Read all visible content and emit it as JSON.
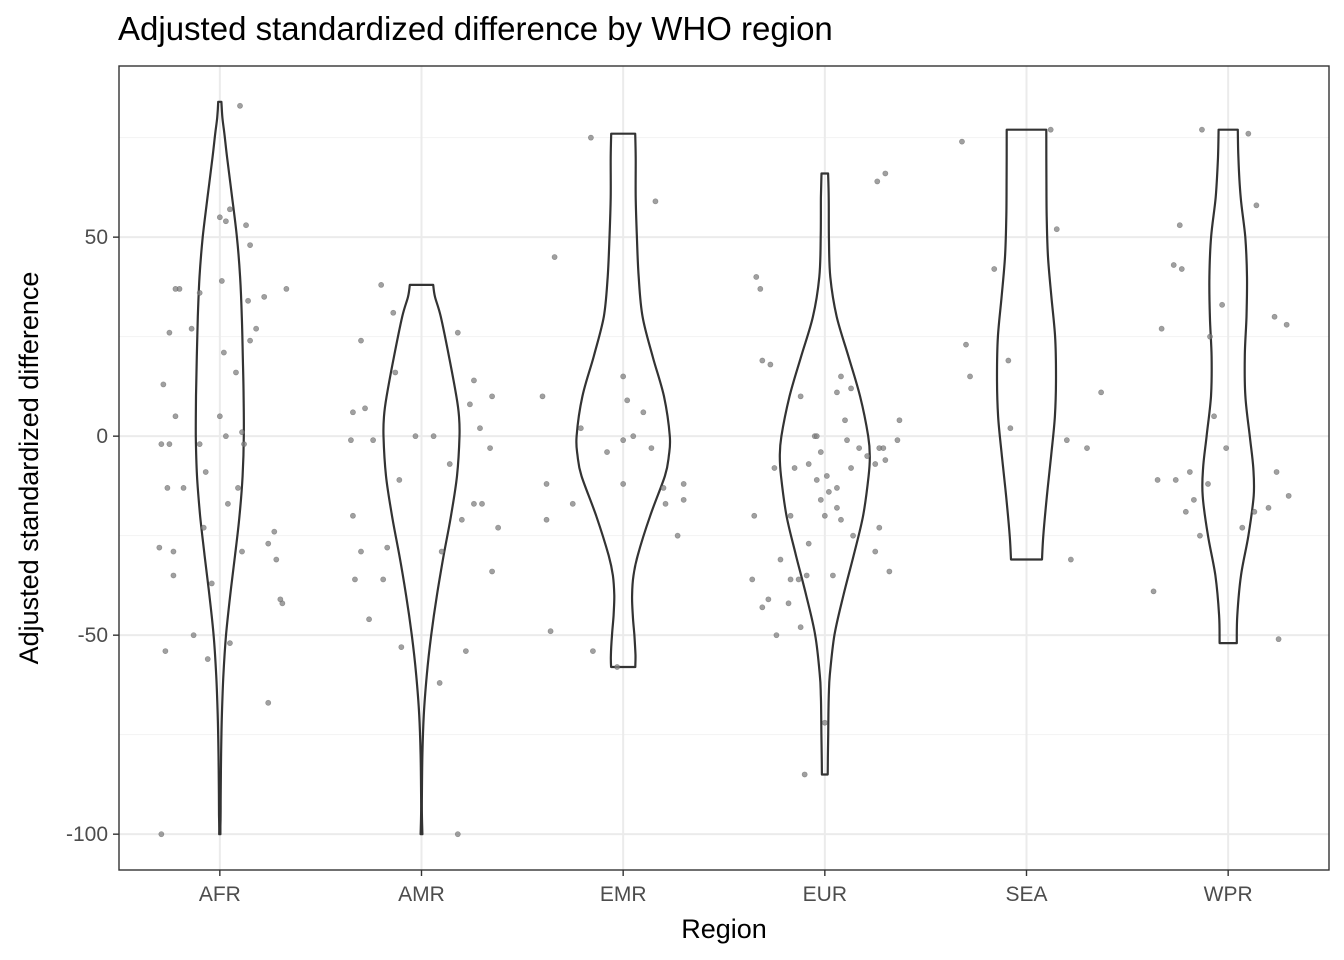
{
  "chart_data": {
    "type": "violin",
    "title": "Adjusted standardized difference by WHO region",
    "xlabel": "Region",
    "ylabel": "Adjusted standardized difference",
    "categories": [
      "AFR",
      "AMR",
      "EMR",
      "EUR",
      "SEA",
      "WPR"
    ],
    "ylim": [
      -109,
      93
    ],
    "yticks": [
      -100,
      -50,
      0,
      50
    ],
    "ytick_labels": [
      "-100",
      "-50",
      "0",
      "50"
    ],
    "grid": true,
    "legend": "none",
    "colors": {
      "violin_line": "#333333",
      "point": "#808080",
      "grid": "#ebebeb",
      "panel_border": "#333333"
    },
    "violins": [
      {
        "category": "AFR",
        "range": [
          -100,
          84
        ],
        "profile": [
          [
            -100,
            0.6
          ],
          [
            -98,
            0.6
          ],
          [
            -95,
            0.8
          ],
          [
            -90,
            0.9
          ],
          [
            -80,
            1.3
          ],
          [
            -70,
            2.1
          ],
          [
            -60,
            3.6
          ],
          [
            -50,
            6.2
          ],
          [
            -40,
            10.4
          ],
          [
            -30,
            15.2
          ],
          [
            -20,
            19.7
          ],
          [
            -10,
            22.8
          ],
          [
            0,
            24
          ],
          [
            10,
            23.8
          ],
          [
            20,
            23
          ],
          [
            30,
            22
          ],
          [
            40,
            20.3
          ],
          [
            50,
            17.1
          ],
          [
            60,
            12.3
          ],
          [
            70,
            7.3
          ],
          [
            76,
            4.6
          ],
          [
            80,
            2.6
          ],
          [
            84,
            1.6
          ]
        ]
      },
      {
        "category": "AMR",
        "range": [
          -100,
          38
        ],
        "profile": [
          [
            -100,
            0.9
          ],
          [
            -95,
            0.4
          ],
          [
            -90,
            0.4
          ],
          [
            -80,
            0.9
          ],
          [
            -70,
            2.3
          ],
          [
            -60,
            5.3
          ],
          [
            -50,
            9.7
          ],
          [
            -40,
            15.4
          ],
          [
            -30,
            22.1
          ],
          [
            -20,
            29.5
          ],
          [
            -10,
            35.5
          ],
          [
            0,
            38
          ],
          [
            5,
            37.5
          ],
          [
            10,
            34.9
          ],
          [
            20,
            27.5
          ],
          [
            30,
            19.3
          ],
          [
            35,
            13.5
          ],
          [
            38,
            11.7
          ]
        ]
      },
      {
        "category": "EMR",
        "range": [
          -58,
          76
        ],
        "profile": [
          [
            -58,
            12.1
          ],
          [
            -55,
            12.3
          ],
          [
            -50,
            11.2
          ],
          [
            -45,
            9.6
          ],
          [
            -40,
            8.9
          ],
          [
            -35,
            10.3
          ],
          [
            -30,
            14.5
          ],
          [
            -20,
            27
          ],
          [
            -10,
            41.7
          ],
          [
            -5,
            45.6
          ],
          [
            0,
            46.6
          ],
          [
            10,
            40.8
          ],
          [
            20,
            29.5
          ],
          [
            30,
            19.4
          ],
          [
            40,
            15.5
          ],
          [
            50,
            13.7
          ],
          [
            60,
            12.5
          ],
          [
            70,
            12.5
          ],
          [
            76,
            12
          ]
        ]
      },
      {
        "category": "EUR",
        "range": [
          -85,
          66
        ],
        "profile": [
          [
            -85,
            2.9
          ],
          [
            -80,
            3.1
          ],
          [
            -75,
            3.4
          ],
          [
            -70,
            3.6
          ],
          [
            -65,
            4
          ],
          [
            -60,
            5
          ],
          [
            -50,
            9.6
          ],
          [
            -40,
            18.6
          ],
          [
            -30,
            28.8
          ],
          [
            -20,
            38.3
          ],
          [
            -10,
            43.8
          ],
          [
            -5,
            45
          ],
          [
            0,
            43.4
          ],
          [
            10,
            35.3
          ],
          [
            20,
            23.7
          ],
          [
            30,
            11.9
          ],
          [
            40,
            5.5
          ],
          [
            50,
            4.1
          ],
          [
            60,
            3.9
          ],
          [
            66,
            3.3
          ]
        ]
      },
      {
        "category": "SEA",
        "range": [
          -31,
          77
        ],
        "profile": [
          [
            -31,
            15.5
          ],
          [
            -25,
            16.8
          ],
          [
            -15,
            20.4
          ],
          [
            -5,
            24.6
          ],
          [
            5,
            28.4
          ],
          [
            15,
            29.5
          ],
          [
            25,
            28.6
          ],
          [
            35,
            24.9
          ],
          [
            45,
            21.5
          ],
          [
            55,
            20.2
          ],
          [
            65,
            19.9
          ],
          [
            77,
            19.8
          ]
        ]
      },
      {
        "category": "WPR",
        "range": [
          -52,
          77
        ],
        "profile": [
          [
            -52,
            8.6
          ],
          [
            -45,
            9.1
          ],
          [
            -35,
            12.8
          ],
          [
            -25,
            20.2
          ],
          [
            -15,
            25.5
          ],
          [
            -8,
            25.1
          ],
          [
            0,
            21.6
          ],
          [
            10,
            17.2
          ],
          [
            20,
            16.6
          ],
          [
            30,
            18.3
          ],
          [
            40,
            18.8
          ],
          [
            50,
            17.1
          ],
          [
            60,
            12.5
          ],
          [
            70,
            10.2
          ],
          [
            77,
            9.6
          ]
        ]
      }
    ],
    "points": [
      {
        "category": "AFR",
        "x": [
          -0.29,
          -0.22,
          -0.28,
          -0.25,
          -0.2,
          -0.23,
          -0.3,
          -0.27,
          -0.14,
          -0.18,
          -0.08,
          -0.04,
          -0.13,
          -0.06,
          -0.1,
          -0.25,
          -0.29,
          -0.22,
          0.1,
          0.05,
          0.15,
          0.03,
          0.01,
          0.13,
          0.11,
          0.04,
          0.09,
          0.02,
          0.0,
          0.05,
          0.24,
          0.31,
          0.3,
          0.27,
          0.12,
          0.08,
          0.0,
          0.18,
          0.33,
          0.22,
          -0.26,
          0.03,
          0.28,
          -0.07,
          0.14,
          0.11,
          0.24,
          0.15,
          -0.1,
          -0.23
        ],
        "y": [
          -100,
          5,
          13,
          26,
          37,
          -29,
          -28,
          -54,
          27,
          -13,
          -23,
          -37,
          -50,
          -56,
          36,
          -2,
          -2,
          37,
          83,
          57,
          48,
          54,
          39,
          53,
          1,
          -17,
          -13,
          21,
          5,
          -52,
          -27,
          -42,
          -41,
          -24,
          -2,
          16,
          55,
          27,
          37,
          35,
          -13,
          0,
          -31,
          -9,
          34,
          -29,
          -67,
          24,
          -2,
          -35
        ]
      },
      {
        "category": "AMR",
        "x": [
          -0.35,
          -0.34,
          -0.3,
          -0.28,
          -0.33,
          -0.3,
          -0.14,
          -0.11,
          -0.2,
          -0.03,
          0.06,
          0.14,
          0.1,
          0.22,
          0.2,
          0.3,
          0.26,
          0.34,
          0.38,
          0.35,
          0.18,
          0.35,
          0.26,
          0.09,
          0.18,
          -0.1,
          -0.19,
          -0.34,
          -0.26,
          -0.17,
          -0.24,
          0.24,
          -0.13,
          0.29
        ],
        "y": [
          -1,
          6,
          24,
          7,
          -36,
          -29,
          31,
          -11,
          38,
          0,
          0,
          -7,
          -29,
          -54,
          -21,
          -17,
          14,
          -3,
          -23,
          10,
          26,
          -34,
          -17,
          -62,
          -100,
          -53,
          -36,
          -20,
          -46,
          -28,
          -1,
          8,
          16,
          2
        ]
      },
      {
        "category": "EMR",
        "x": [
          -0.4,
          -0.38,
          -0.34,
          -0.36,
          -0.38,
          -0.21,
          -0.08,
          -0.16,
          -0.03,
          -0.25,
          0.02,
          0.05,
          0.1,
          0.0,
          0.14,
          0.2,
          0.16,
          0.21,
          0.27,
          0.3,
          0.3,
          0.0,
          -0.15,
          0.0
        ],
        "y": [
          10,
          -12,
          45,
          -49,
          -21,
          2,
          -4,
          75,
          -58,
          -17,
          9,
          0,
          6,
          -1,
          -3,
          -13,
          59,
          -17,
          -25,
          -16,
          -12,
          15,
          -54,
          -12
        ]
      },
      {
        "category": "EUR",
        "x": [
          -0.36,
          -0.35,
          -0.32,
          -0.34,
          -0.28,
          -0.31,
          -0.24,
          -0.22,
          -0.13,
          -0.17,
          -0.15,
          -0.05,
          -0.08,
          -0.04,
          -0.08,
          -0.09,
          -0.12,
          -0.17,
          -0.02,
          -0.02,
          0.01,
          -0.04,
          0.06,
          0.06,
          0.0,
          0.02,
          0.04,
          0.08,
          0.13,
          0.14,
          0.17,
          0.21,
          0.25,
          0.27,
          0.29,
          0.27,
          0.32,
          0.3,
          0.26,
          0.37,
          -0.18,
          -0.25,
          -0.27,
          -0.31,
          0.1,
          0.13,
          -0.12,
          0.06,
          0.08,
          -0.1,
          0.0,
          0.11,
          0.3,
          0.25,
          0.36
        ],
        "y": [
          -36,
          -20,
          37,
          40,
          -41,
          -43,
          -50,
          -31,
          -36,
          -20,
          -8,
          0,
          -7,
          0,
          -27,
          -35,
          -48,
          -36,
          -4,
          -16,
          -10,
          -11,
          -13,
          -18,
          -20,
          -14,
          -35,
          -21,
          -8,
          -25,
          -3,
          -5,
          -7,
          -3,
          -3,
          -23,
          -34,
          66,
          64,
          4,
          -42,
          -8,
          18,
          19,
          4,
          12,
          10,
          11,
          15,
          -85,
          -72,
          -1,
          -6,
          -29,
          -1
        ]
      },
      {
        "category": "SEA",
        "x": [
          -0.32,
          -0.3,
          -0.28,
          -0.16,
          -0.09,
          -0.08,
          0.12,
          0.15,
          0.2,
          0.22,
          0.3,
          0.37
        ],
        "y": [
          74,
          23,
          15,
          42,
          19,
          2,
          77,
          52,
          -1,
          -31,
          -3,
          11
        ]
      },
      {
        "category": "WPR",
        "x": [
          -0.37,
          -0.35,
          -0.27,
          -0.23,
          -0.24,
          -0.26,
          -0.21,
          -0.17,
          -0.19,
          -0.14,
          -0.13,
          -0.1,
          -0.07,
          -0.09,
          -0.03,
          -0.01,
          0.07,
          0.1,
          0.14,
          0.13,
          0.2,
          0.25,
          0.29,
          0.3,
          0.24,
          0.23,
          -0.33
        ],
        "y": [
          -39,
          -11,
          43,
          42,
          53,
          -11,
          -19,
          -16,
          -9,
          -25,
          77,
          -12,
          5,
          25,
          33,
          -3,
          -23,
          76,
          58,
          -19,
          -18,
          -51,
          28,
          -15,
          -9,
          30,
          27
        ]
      }
    ]
  }
}
